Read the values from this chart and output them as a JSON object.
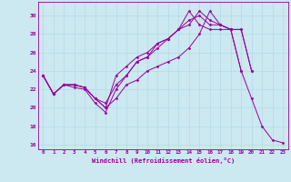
{
  "xlabel": "Windchill (Refroidissement éolien,°C)",
  "bg_color": "#cce8f0",
  "line_color": "#990099",
  "xlim": [
    -0.5,
    23.5
  ],
  "ylim": [
    15.5,
    31.5
  ],
  "xticks": [
    0,
    1,
    2,
    3,
    4,
    5,
    6,
    7,
    8,
    9,
    10,
    11,
    12,
    13,
    14,
    15,
    16,
    17,
    18,
    19,
    20,
    21,
    22,
    23
  ],
  "yticks": [
    16,
    18,
    20,
    22,
    24,
    26,
    28,
    30
  ],
  "series": [
    [
      23.5,
      21.5,
      22.5,
      22.2,
      22.0,
      20.5,
      19.5,
      22.0,
      23.5,
      25.0,
      25.5,
      27.0,
      27.5,
      28.5,
      30.5,
      29.0,
      28.5,
      28.5,
      28.5,
      24.0,
      21.0,
      18.0,
      16.5,
      16.2
    ],
    [
      23.5,
      21.5,
      22.5,
      22.5,
      22.2,
      21.0,
      20.0,
      21.0,
      22.5,
      23.0,
      24.0,
      24.5,
      25.0,
      25.5,
      26.5,
      28.0,
      30.5,
      29.0,
      28.5,
      28.5,
      24.0,
      null,
      null,
      null
    ],
    [
      23.5,
      21.5,
      22.5,
      22.5,
      22.2,
      21.0,
      20.0,
      23.5,
      24.5,
      25.5,
      26.0,
      27.0,
      27.5,
      28.5,
      29.0,
      30.5,
      29.5,
      29.0,
      28.5,
      28.5,
      24.0,
      null,
      null,
      null
    ],
    [
      23.5,
      21.5,
      22.5,
      22.5,
      22.2,
      21.0,
      20.5,
      22.5,
      23.5,
      25.0,
      25.5,
      26.5,
      27.5,
      28.5,
      29.5,
      30.0,
      29.0,
      29.0,
      28.5,
      24.0,
      null,
      null,
      null,
      null
    ]
  ]
}
